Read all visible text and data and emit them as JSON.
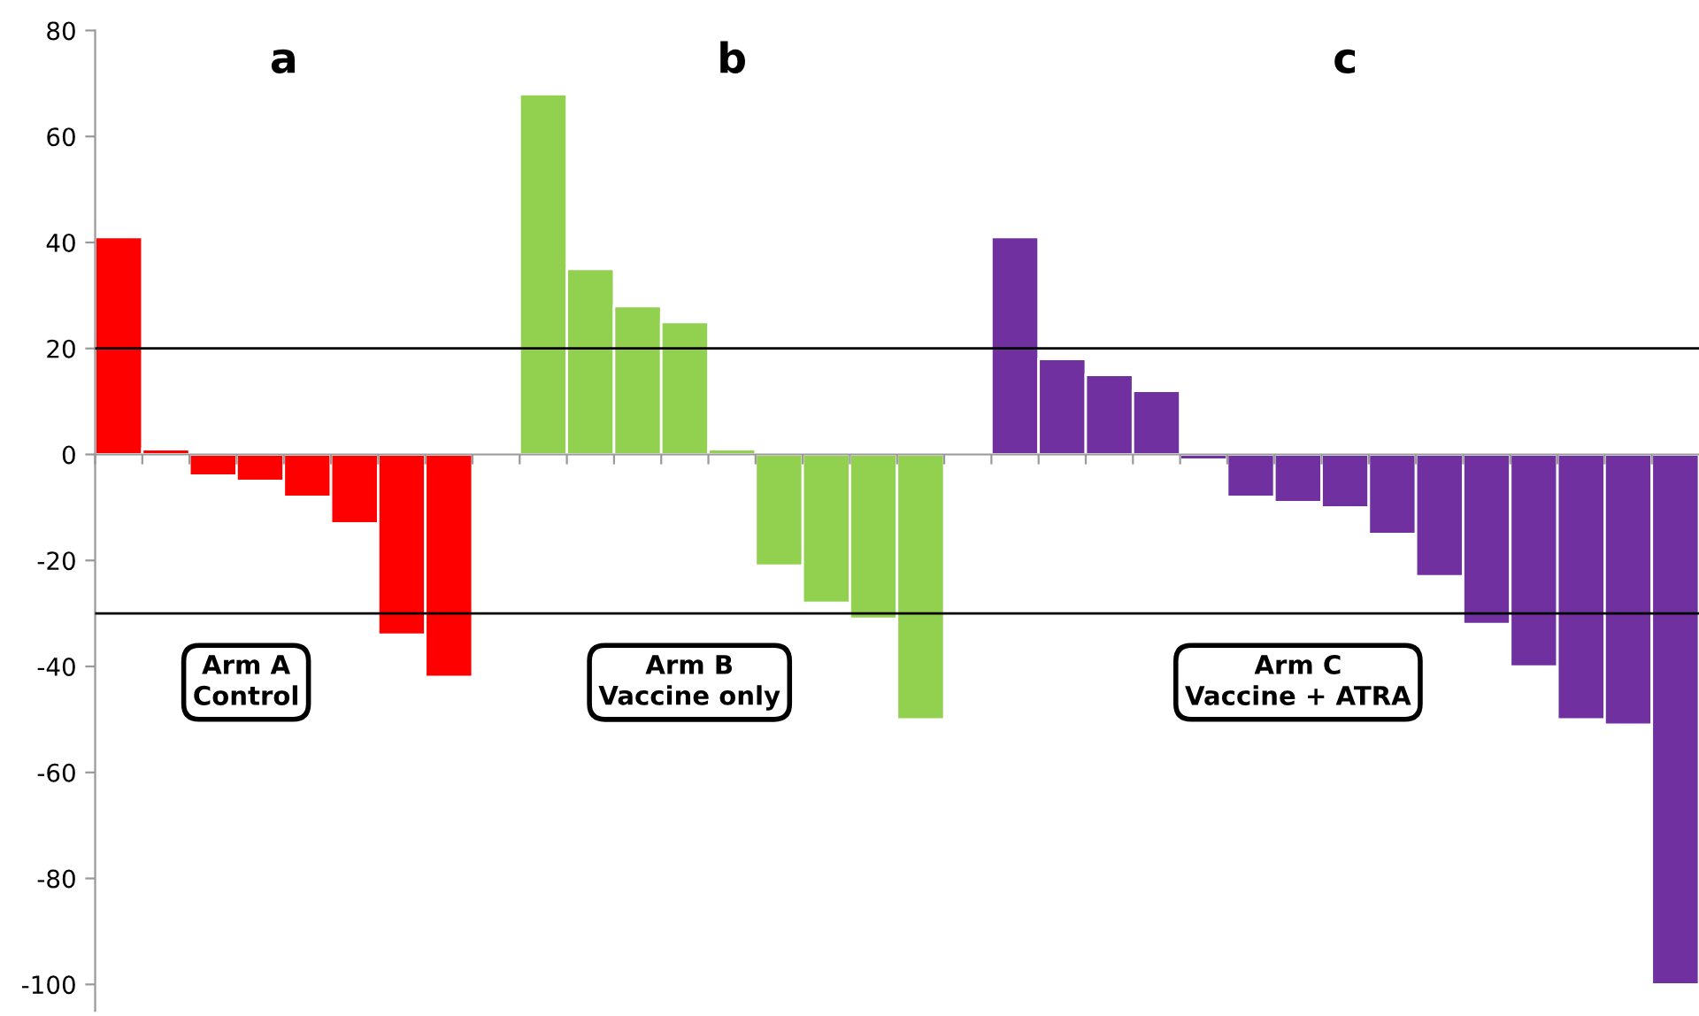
{
  "chart_data": {
    "type": "bar",
    "categories": [
      null,
      null,
      null,
      null,
      null,
      null,
      null,
      null,
      null,
      null,
      null,
      null,
      null,
      null,
      null,
      null,
      null,
      null,
      null,
      null,
      null,
      null,
      null,
      null,
      null,
      null,
      null,
      null,
      null,
      null,
      null,
      null,
      null,
      null
    ],
    "values": [
      41,
      1,
      -4,
      -5,
      -8,
      -13,
      -34,
      -42,
      null,
      68,
      35,
      28,
      25,
      1,
      -21,
      -28,
      -31,
      -50,
      null,
      41,
      18,
      15,
      12,
      -1,
      -8,
      -9,
      -10,
      -15,
      -23,
      -32,
      -40,
      -50,
      -51,
      -100
    ],
    "colors": [
      "#ff0000",
      "#ff0000",
      "#ff0000",
      "#ff0000",
      "#ff0000",
      "#ff0000",
      "#ff0000",
      "#ff0000",
      "#ffffff",
      "#92d050",
      "#92d050",
      "#92d050",
      "#92d050",
      "#92d050",
      "#92d050",
      "#92d050",
      "#92d050",
      "#92d050",
      "#ffffff",
      "#7030a0",
      "#7030a0",
      "#7030a0",
      "#7030a0",
      "#7030a0",
      "#7030a0",
      "#7030a0",
      "#7030a0",
      "#7030a0",
      "#7030a0",
      "#7030a0",
      "#7030a0",
      "#7030a0",
      "#7030a0",
      "#7030a0"
    ],
    "ylim": [
      -105,
      80
    ],
    "yticks": [
      -100,
      -80,
      -60,
      -40,
      -20,
      0,
      20,
      40,
      60,
      80
    ],
    "ref_lines": [
      {
        "axis": "y",
        "value": 20,
        "color": "#000000"
      },
      {
        "axis": "y",
        "value": -30,
        "color": "#000000"
      }
    ],
    "annotations": [
      "a",
      "b",
      "c",
      "Arm A\nControl",
      "Arm B\nVaccine only",
      "Arm C\nVaccine + ATRA"
    ],
    "grid": false,
    "legend": false
  }
}
